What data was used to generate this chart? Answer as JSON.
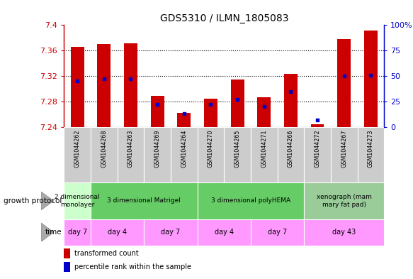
{
  "title": "GDS5310 / ILMN_1805083",
  "samples": [
    "GSM1044262",
    "GSM1044268",
    "GSM1044263",
    "GSM1044269",
    "GSM1044264",
    "GSM1044270",
    "GSM1044265",
    "GSM1044271",
    "GSM1044266",
    "GSM1044272",
    "GSM1044267",
    "GSM1044273"
  ],
  "transformed_count": [
    7.366,
    7.37,
    7.371,
    7.289,
    7.262,
    7.284,
    7.314,
    7.287,
    7.323,
    7.244,
    7.378,
    7.392
  ],
  "percentile_rank": [
    45,
    47,
    47,
    22,
    13,
    22,
    27,
    20,
    35,
    7,
    50,
    51
  ],
  "ymin": 7.24,
  "ymax": 7.4,
  "yticks": [
    7.24,
    7.28,
    7.32,
    7.36,
    7.4
  ],
  "ytick_labels": [
    "7.24",
    "7.28",
    "7.32",
    "7.36",
    "7.4"
  ],
  "y2min": 0,
  "y2max": 100,
  "y2ticks": [
    0,
    25,
    50,
    75,
    100
  ],
  "y2tick_labels": [
    "0",
    "25",
    "50",
    "75",
    "100%"
  ],
  "bar_color": "#cc0000",
  "dot_color": "#0000cc",
  "bar_width": 0.5,
  "growth_protocol_groups": [
    {
      "label": "2 dimensional\nmonolayer",
      "start": 0,
      "end": 1,
      "color": "#ccffcc"
    },
    {
      "label": "3 dimensional Matrigel",
      "start": 1,
      "end": 5,
      "color": "#66cc66"
    },
    {
      "label": "3 dimensional polyHEMA",
      "start": 5,
      "end": 9,
      "color": "#66cc66"
    },
    {
      "label": "xenograph (mam\nmary fat pad)",
      "start": 9,
      "end": 12,
      "color": "#99cc99"
    }
  ],
  "time_groups": [
    {
      "label": "day 7",
      "start": 0,
      "end": 1
    },
    {
      "label": "day 4",
      "start": 1,
      "end": 3
    },
    {
      "label": "day 7",
      "start": 3,
      "end": 5
    },
    {
      "label": "day 4",
      "start": 5,
      "end": 7
    },
    {
      "label": "day 7",
      "start": 7,
      "end": 9
    },
    {
      "label": "day 43",
      "start": 9,
      "end": 12
    }
  ],
  "time_color": "#ff99ff",
  "xtick_bg_color": "#cccccc",
  "legend_bar_color": "#cc0000",
  "legend_dot_color": "#0000cc",
  "title_color": "#000000",
  "left_label_growth": "growth protocol",
  "left_label_time": "time"
}
